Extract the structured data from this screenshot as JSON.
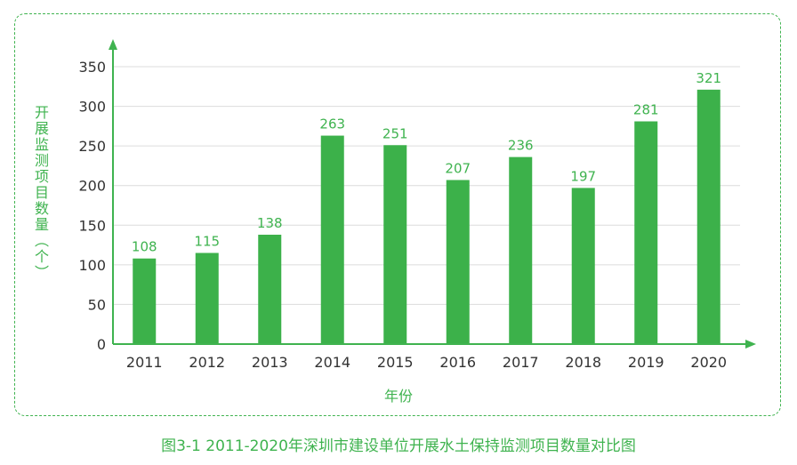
{
  "caption": "图3-1  2011-2020年深圳市建设单位开展水土保持监测项目数量对比图",
  "chart_data": {
    "type": "bar",
    "categories": [
      "2011",
      "2012",
      "2013",
      "2014",
      "2015",
      "2016",
      "2017",
      "2018",
      "2019",
      "2020"
    ],
    "values": [
      108,
      115,
      138,
      263,
      251,
      207,
      236,
      197,
      281,
      321
    ],
    "xlabel": "年份",
    "ylabel": "开展监测项目数量（个）",
    "ylim": [
      0,
      350
    ],
    "yticks": [
      0,
      50,
      100,
      150,
      200,
      250,
      300,
      350
    ],
    "grid": true,
    "color": "#3cb14a",
    "axis_color": "#3fb34f"
  }
}
